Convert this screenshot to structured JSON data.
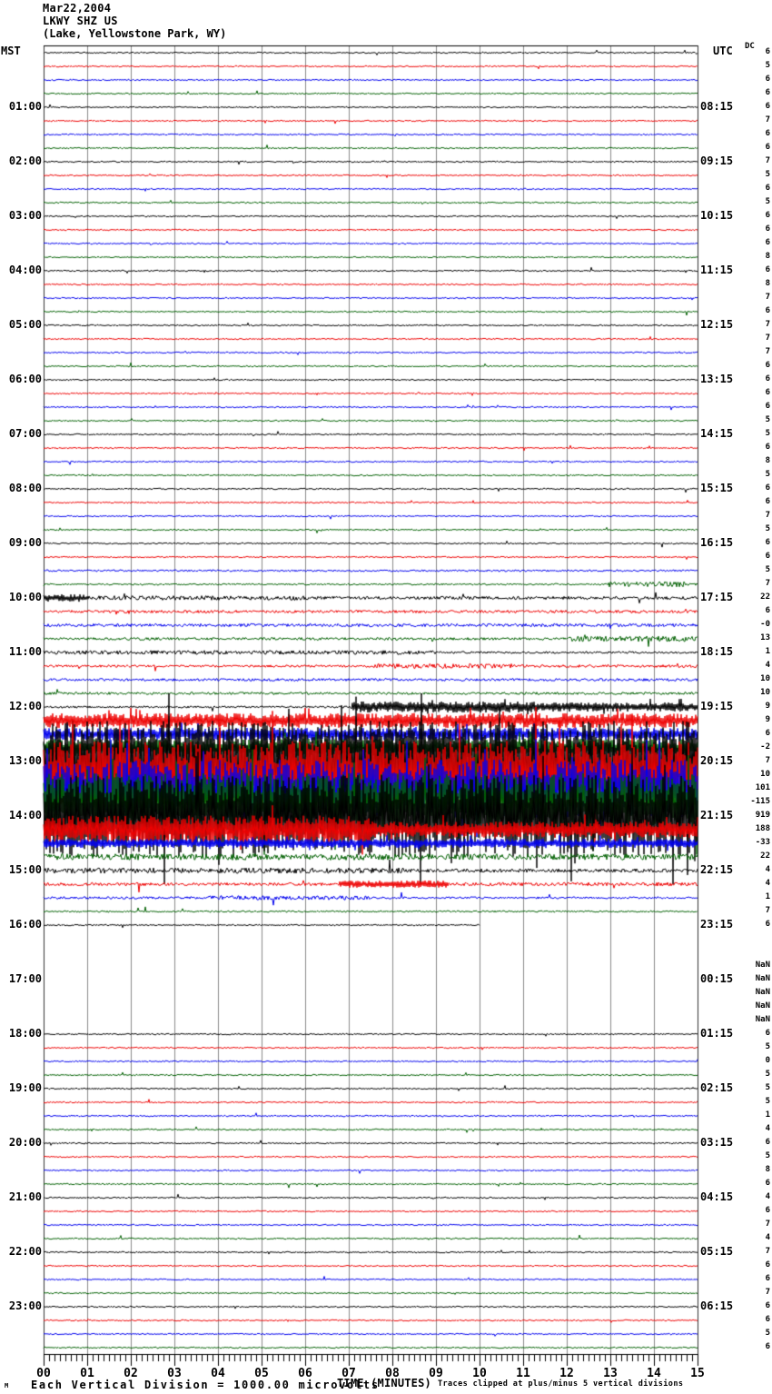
{
  "title": {
    "date": "Mar22,2004",
    "station": "LKWY SHZ US",
    "location": "(Lake, Yellowstone Park, WY)"
  },
  "header": {
    "left_tz": "MST",
    "right_tz": "UTC",
    "dc_label": "DC"
  },
  "footer": {
    "left_note": "Each Vertical Division = 1000.00 microvolts",
    "right_note": "Traces clipped at plus/minus 5 vertical divisions",
    "corner_mark": "M"
  },
  "colors": {
    "trace_cycle": [
      "#000000",
      "#ee0000",
      "#0000ee",
      "#006000"
    ],
    "grid": "#8a8a8a",
    "grid_edge": "#333333",
    "axis": "#000000",
    "background": "#ffffff"
  },
  "chart_data": {
    "type": "helicorder-seismogram",
    "title": "LKWY SHZ US (Lake, Yellowstone Park, WY) Mar22,2004",
    "x_label": "TIME (MINUTES)",
    "x_range": [
      0,
      15
    ],
    "x_tick_labels": [
      "00",
      "01",
      "02",
      "03",
      "04",
      "05",
      "06",
      "07",
      "08",
      "09",
      "10",
      "11",
      "12",
      "13",
      "14",
      "15"
    ],
    "minor_ticks_per_minute": 8,
    "rows_per_hour": 4,
    "row_duration_minutes": 15,
    "left_timezone": "MST",
    "right_timezone": "UTC",
    "vertical_division_microvolts": 1000.0,
    "clip_divisions": 5,
    "default_segments": [
      [
        0,
        1,
        0.75
      ]
    ],
    "rows": [
      {
        "mst": "",
        "utc": "",
        "dc": "6"
      },
      {
        "mst": "",
        "utc": "",
        "dc": "5"
      },
      {
        "mst": "",
        "utc": "",
        "dc": "6"
      },
      {
        "mst": "",
        "utc": "",
        "dc": "6"
      },
      {
        "mst": "01:00",
        "utc": "08:15",
        "dc": "6"
      },
      {
        "mst": "",
        "utc": "",
        "dc": "7"
      },
      {
        "mst": "",
        "utc": "",
        "dc": "6"
      },
      {
        "mst": "",
        "utc": "",
        "dc": "6"
      },
      {
        "mst": "02:00",
        "utc": "09:15",
        "dc": "7"
      },
      {
        "mst": "",
        "utc": "",
        "dc": "5"
      },
      {
        "mst": "",
        "utc": "",
        "dc": "6"
      },
      {
        "mst": "",
        "utc": "",
        "dc": "5"
      },
      {
        "mst": "03:00",
        "utc": "10:15",
        "dc": "6"
      },
      {
        "mst": "",
        "utc": "",
        "dc": "6"
      },
      {
        "mst": "",
        "utc": "",
        "dc": "6"
      },
      {
        "mst": "",
        "utc": "",
        "dc": "8"
      },
      {
        "mst": "04:00",
        "utc": "11:15",
        "dc": "6"
      },
      {
        "mst": "",
        "utc": "",
        "dc": "8"
      },
      {
        "mst": "",
        "utc": "",
        "dc": "7"
      },
      {
        "mst": "",
        "utc": "",
        "dc": "6"
      },
      {
        "mst": "05:00",
        "utc": "12:15",
        "dc": "7"
      },
      {
        "mst": "",
        "utc": "",
        "dc": "7"
      },
      {
        "mst": "",
        "utc": "",
        "dc": "7"
      },
      {
        "mst": "",
        "utc": "",
        "dc": "6"
      },
      {
        "mst": "06:00",
        "utc": "13:15",
        "dc": "6"
      },
      {
        "mst": "",
        "utc": "",
        "dc": "6"
      },
      {
        "mst": "",
        "utc": "",
        "dc": "6"
      },
      {
        "mst": "",
        "utc": "",
        "dc": "5"
      },
      {
        "mst": "07:00",
        "utc": "14:15",
        "dc": "5"
      },
      {
        "mst": "",
        "utc": "",
        "dc": "6"
      },
      {
        "mst": "",
        "utc": "",
        "dc": "8"
      },
      {
        "mst": "",
        "utc": "",
        "dc": "5"
      },
      {
        "mst": "08:00",
        "utc": "15:15",
        "dc": "6"
      },
      {
        "mst": "",
        "utc": "",
        "dc": "6"
      },
      {
        "mst": "",
        "utc": "",
        "dc": "7"
      },
      {
        "mst": "",
        "utc": "",
        "dc": "5"
      },
      {
        "mst": "09:00",
        "utc": "16:15",
        "dc": "6"
      },
      {
        "mst": "",
        "utc": "",
        "dc": "6"
      },
      {
        "mst": "",
        "utc": "",
        "dc": "5",
        "seg": [
          [
            0,
            1,
            1.0
          ]
        ]
      },
      {
        "mst": "",
        "utc": "",
        "dc": "7",
        "seg": [
          [
            0,
            0.86,
            0.9
          ],
          [
            0.86,
            0.98,
            3.0
          ],
          [
            0.98,
            1,
            1.2
          ]
        ]
      },
      {
        "mst": "10:00",
        "utc": "17:15",
        "dc": "22",
        "seg": [
          [
            0,
            0.07,
            4.0
          ],
          [
            0.07,
            0.4,
            2.4
          ],
          [
            0.4,
            1,
            1.7
          ]
        ]
      },
      {
        "mst": "",
        "utc": "",
        "dc": "6",
        "seg": [
          [
            0,
            1,
            1.5
          ]
        ]
      },
      {
        "mst": "",
        "utc": "",
        "dc": "-0",
        "seg": [
          [
            0,
            1,
            1.7
          ]
        ]
      },
      {
        "mst": "",
        "utc": "",
        "dc": "13",
        "seg": [
          [
            0,
            0.8,
            1.4
          ],
          [
            0.8,
            1,
            3.0
          ]
        ]
      },
      {
        "mst": "11:00",
        "utc": "18:15",
        "dc": "1",
        "seg": [
          [
            0,
            0.6,
            2.2
          ],
          [
            0.6,
            1,
            1.1
          ]
        ]
      },
      {
        "mst": "",
        "utc": "",
        "dc": "4",
        "seg": [
          [
            0,
            0.5,
            1.3
          ],
          [
            0.5,
            0.72,
            2.6
          ],
          [
            0.72,
            1,
            1.5
          ]
        ]
      },
      {
        "mst": "",
        "utc": "",
        "dc": "10",
        "seg": [
          [
            0,
            1,
            1.4
          ]
        ]
      },
      {
        "mst": "",
        "utc": "",
        "dc": "10",
        "seg": [
          [
            0,
            1,
            1.3
          ]
        ]
      },
      {
        "mst": "12:00",
        "utc": "19:15",
        "dc": "9",
        "seg": [
          [
            0,
            0.47,
            1.1
          ],
          [
            0.47,
            0.75,
            6
          ],
          [
            0.75,
            1,
            5
          ]
        ]
      },
      {
        "mst": "",
        "utc": "",
        "dc": "9",
        "seg": [
          [
            0,
            1,
            8
          ]
        ]
      },
      {
        "mst": "",
        "utc": "",
        "dc": "6",
        "seg": [
          [
            0,
            1,
            7
          ]
        ]
      },
      {
        "mst": "",
        "utc": "",
        "dc": "-2",
        "seg": [
          [
            0,
            1,
            10
          ]
        ]
      },
      {
        "mst": "13:00",
        "utc": "20:15",
        "dc": "7",
        "seg": [
          [
            0,
            1,
            45
          ]
        ]
      },
      {
        "mst": "",
        "utc": "",
        "dc": "10",
        "seg": [
          [
            0,
            1,
            38
          ]
        ]
      },
      {
        "mst": "",
        "utc": "",
        "dc": "101",
        "seg": [
          [
            0,
            1,
            32
          ]
        ]
      },
      {
        "mst": "",
        "utc": "",
        "dc": "-115",
        "seg": [
          [
            0,
            1,
            32
          ]
        ]
      },
      {
        "mst": "14:00",
        "utc": "21:15",
        "dc": "919",
        "seg": [
          [
            0,
            1,
            45
          ]
        ]
      },
      {
        "mst": "",
        "utc": "",
        "dc": "188",
        "seg": [
          [
            0,
            0.5,
            16
          ],
          [
            0.5,
            1,
            9
          ]
        ]
      },
      {
        "mst": "",
        "utc": "",
        "dc": "-33",
        "seg": [
          [
            0,
            1,
            5
          ]
        ]
      },
      {
        "mst": "",
        "utc": "",
        "dc": "22",
        "seg": [
          [
            0,
            1,
            3.5
          ]
        ]
      },
      {
        "mst": "15:00",
        "utc": "22:15",
        "dc": "4",
        "seg": [
          [
            0,
            0.55,
            3
          ],
          [
            0.55,
            1,
            2
          ]
        ]
      },
      {
        "mst": "",
        "utc": "",
        "dc": "4",
        "seg": [
          [
            0,
            0.45,
            1.6
          ],
          [
            0.45,
            0.62,
            4
          ],
          [
            0.62,
            1,
            2
          ]
        ]
      },
      {
        "mst": "",
        "utc": "",
        "dc": "1",
        "seg": [
          [
            0,
            0.25,
            1.3
          ],
          [
            0.25,
            0.5,
            2.2
          ],
          [
            0.5,
            1,
            1.1
          ]
        ]
      },
      {
        "mst": "",
        "utc": "",
        "dc": "7",
        "seg": [
          [
            0,
            1,
            0.9
          ]
        ]
      },
      {
        "mst": "16:00",
        "utc": "23:15",
        "dc": "6",
        "end": 0.667
      },
      {
        "mst": "",
        "utc": "",
        "dc": "",
        "missing": true
      },
      {
        "mst": "",
        "utc": "",
        "dc": "",
        "missing": true
      },
      {
        "mst": "",
        "utc": "",
        "dc": "NaN",
        "missing": true
      },
      {
        "mst": "17:00",
        "utc": "00:15",
        "dc": "NaN",
        "missing": true
      },
      {
        "mst": "",
        "utc": "",
        "dc": "NaN",
        "missing": true
      },
      {
        "mst": "",
        "utc": "",
        "dc": "NaN",
        "missing": true
      },
      {
        "mst": "",
        "utc": "",
        "dc": "NaN",
        "missing": true
      },
      {
        "mst": "18:00",
        "utc": "01:15",
        "dc": "6"
      },
      {
        "mst": "",
        "utc": "",
        "dc": "5"
      },
      {
        "mst": "",
        "utc": "",
        "dc": "0"
      },
      {
        "mst": "",
        "utc": "",
        "dc": "5"
      },
      {
        "mst": "19:00",
        "utc": "02:15",
        "dc": "5"
      },
      {
        "mst": "",
        "utc": "",
        "dc": "5"
      },
      {
        "mst": "",
        "utc": "",
        "dc": "1"
      },
      {
        "mst": "",
        "utc": "",
        "dc": "4"
      },
      {
        "mst": "20:00",
        "utc": "03:15",
        "dc": "6"
      },
      {
        "mst": "",
        "utc": "",
        "dc": "5"
      },
      {
        "mst": "",
        "utc": "",
        "dc": "8"
      },
      {
        "mst": "",
        "utc": "",
        "dc": "6"
      },
      {
        "mst": "21:00",
        "utc": "04:15",
        "dc": "4"
      },
      {
        "mst": "",
        "utc": "",
        "dc": "6"
      },
      {
        "mst": "",
        "utc": "",
        "dc": "7"
      },
      {
        "mst": "",
        "utc": "",
        "dc": "4"
      },
      {
        "mst": "22:00",
        "utc": "05:15",
        "dc": "7"
      },
      {
        "mst": "",
        "utc": "",
        "dc": "6"
      },
      {
        "mst": "",
        "utc": "",
        "dc": "6"
      },
      {
        "mst": "",
        "utc": "",
        "dc": "7"
      },
      {
        "mst": "23:00",
        "utc": "06:15",
        "dc": "6"
      },
      {
        "mst": "",
        "utc": "",
        "dc": "6"
      },
      {
        "mst": "",
        "utc": "",
        "dc": "5"
      },
      {
        "mst": "",
        "utc": "",
        "dc": "6"
      }
    ]
  }
}
